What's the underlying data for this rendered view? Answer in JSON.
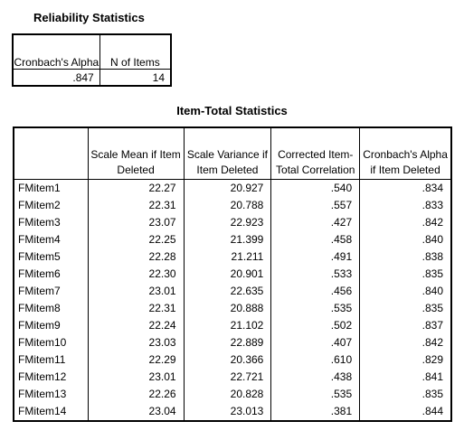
{
  "reliability": {
    "title": "Reliability Statistics",
    "headers": [
      "Cronbach's Alpha",
      "N of Items"
    ],
    "values": [
      ".847",
      "14"
    ]
  },
  "item_total": {
    "title": "Item-Total Statistics",
    "headers": [
      "",
      "Scale Mean if Item Deleted",
      "Scale Variance if Item Deleted",
      "Corrected Item-Total Correlation",
      "Cronbach's Alpha if Item Deleted"
    ],
    "rows": [
      [
        "FMitem1",
        "22.27",
        "20.927",
        ".540",
        ".834"
      ],
      [
        "FMitem2",
        "22.31",
        "20.788",
        ".557",
        ".833"
      ],
      [
        "FMitem3",
        "23.07",
        "22.923",
        ".427",
        ".842"
      ],
      [
        "FMitem4",
        "22.25",
        "21.399",
        ".458",
        ".840"
      ],
      [
        "FMitem5",
        "22.28",
        "21.211",
        ".491",
        ".838"
      ],
      [
        "FMitem6",
        "22.30",
        "20.901",
        ".533",
        ".835"
      ],
      [
        "FMitem7",
        "23.01",
        "22.635",
        ".456",
        ".840"
      ],
      [
        "FMitem8",
        "22.31",
        "20.888",
        ".535",
        ".835"
      ],
      [
        "FMitem9",
        "22.24",
        "21.102",
        ".502",
        ".837"
      ],
      [
        "FMitem10",
        "23.03",
        "22.889",
        ".407",
        ".842"
      ],
      [
        "FMitem11",
        "22.29",
        "20.366",
        ".610",
        ".829"
      ],
      [
        "FMitem12",
        "23.01",
        "22.721",
        ".438",
        ".841"
      ],
      [
        "FMitem13",
        "22.26",
        "20.828",
        ".535",
        ".835"
      ],
      [
        "FMitem14",
        "23.04",
        "23.013",
        ".381",
        ".844"
      ]
    ]
  }
}
